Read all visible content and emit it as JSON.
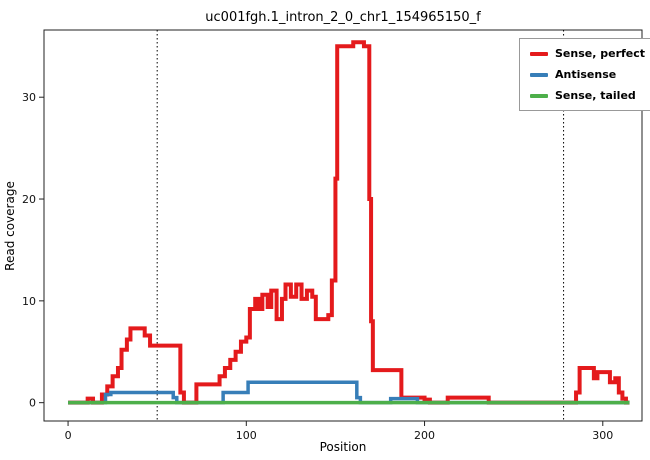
{
  "chart_data": {
    "type": "line",
    "title": "uc001fgh.1_intron_2_0_chr1_154965150_f",
    "xlabel": "Position",
    "ylabel": "Read coverage",
    "xlim": [
      -13.5,
      322
    ],
    "ylim": [
      -1.8,
      36.6
    ],
    "xticks": [
      0,
      100,
      200,
      300
    ],
    "yticks": [
      0,
      10,
      20,
      30
    ],
    "grid": false,
    "legend_position": "top-right",
    "vlines": [
      50,
      278
    ],
    "x_end": 315,
    "series": [
      {
        "name": "Sense, perfect",
        "color": "#e41a1c",
        "width": 4,
        "steps": [
          [
            0,
            0
          ],
          [
            11,
            0.4
          ],
          [
            14,
            0
          ],
          [
            19,
            0.8
          ],
          [
            22,
            1.6
          ],
          [
            25,
            2.6
          ],
          [
            28,
            3.4
          ],
          [
            30,
            5.2
          ],
          [
            33,
            6.2
          ],
          [
            35,
            7.3
          ],
          [
            43,
            6.6
          ],
          [
            46,
            5.6
          ],
          [
            63,
            1.0
          ],
          [
            65,
            0
          ],
          [
            72,
            1.8
          ],
          [
            85,
            2.6
          ],
          [
            88,
            3.4
          ],
          [
            91,
            4.2
          ],
          [
            94,
            5.0
          ],
          [
            97,
            6.0
          ],
          [
            100,
            6.4
          ],
          [
            102,
            9.2
          ],
          [
            105,
            10.2
          ],
          [
            107,
            9.2
          ],
          [
            109,
            10.6
          ],
          [
            112,
            9.4
          ],
          [
            114,
            11.0
          ],
          [
            117,
            8.2
          ],
          [
            120,
            10.2
          ],
          [
            122,
            11.6
          ],
          [
            125,
            10.4
          ],
          [
            128,
            11.6
          ],
          [
            131,
            10.2
          ],
          [
            134,
            11.0
          ],
          [
            137,
            10.4
          ],
          [
            139,
            8.2
          ],
          [
            146,
            8.6
          ],
          [
            148,
            12.0
          ],
          [
            150,
            22.0
          ],
          [
            151,
            35.0
          ],
          [
            160,
            35.4
          ],
          [
            166,
            35.0
          ],
          [
            169,
            20.0
          ],
          [
            170,
            8.0
          ],
          [
            171,
            3.2
          ],
          [
            187,
            0.5
          ],
          [
            200,
            0.3
          ],
          [
            203,
            0
          ],
          [
            213,
            0.5
          ],
          [
            233,
            0.5
          ],
          [
            236,
            0
          ],
          [
            285,
            1.0
          ],
          [
            287,
            3.4
          ],
          [
            295,
            2.4
          ],
          [
            297,
            3.0
          ],
          [
            304,
            2.0
          ],
          [
            307,
            2.4
          ],
          [
            309,
            1.0
          ],
          [
            311,
            0.4
          ],
          [
            313,
            0
          ]
        ]
      },
      {
        "name": "Antisense",
        "color": "#377eb8",
        "width": 3.5,
        "steps": [
          [
            0,
            0
          ],
          [
            21,
            0.8
          ],
          [
            24,
            1.0
          ],
          [
            59,
            0.5
          ],
          [
            61,
            0
          ],
          [
            87,
            1.0
          ],
          [
            101,
            2.0
          ],
          [
            162,
            0.5
          ],
          [
            164,
            0
          ],
          [
            181,
            0.4
          ],
          [
            196,
            0
          ]
        ]
      },
      {
        "name": "Sense, tailed",
        "color": "#4daf4a",
        "width": 3.5,
        "steps": [
          [
            0,
            0
          ]
        ]
      }
    ]
  }
}
